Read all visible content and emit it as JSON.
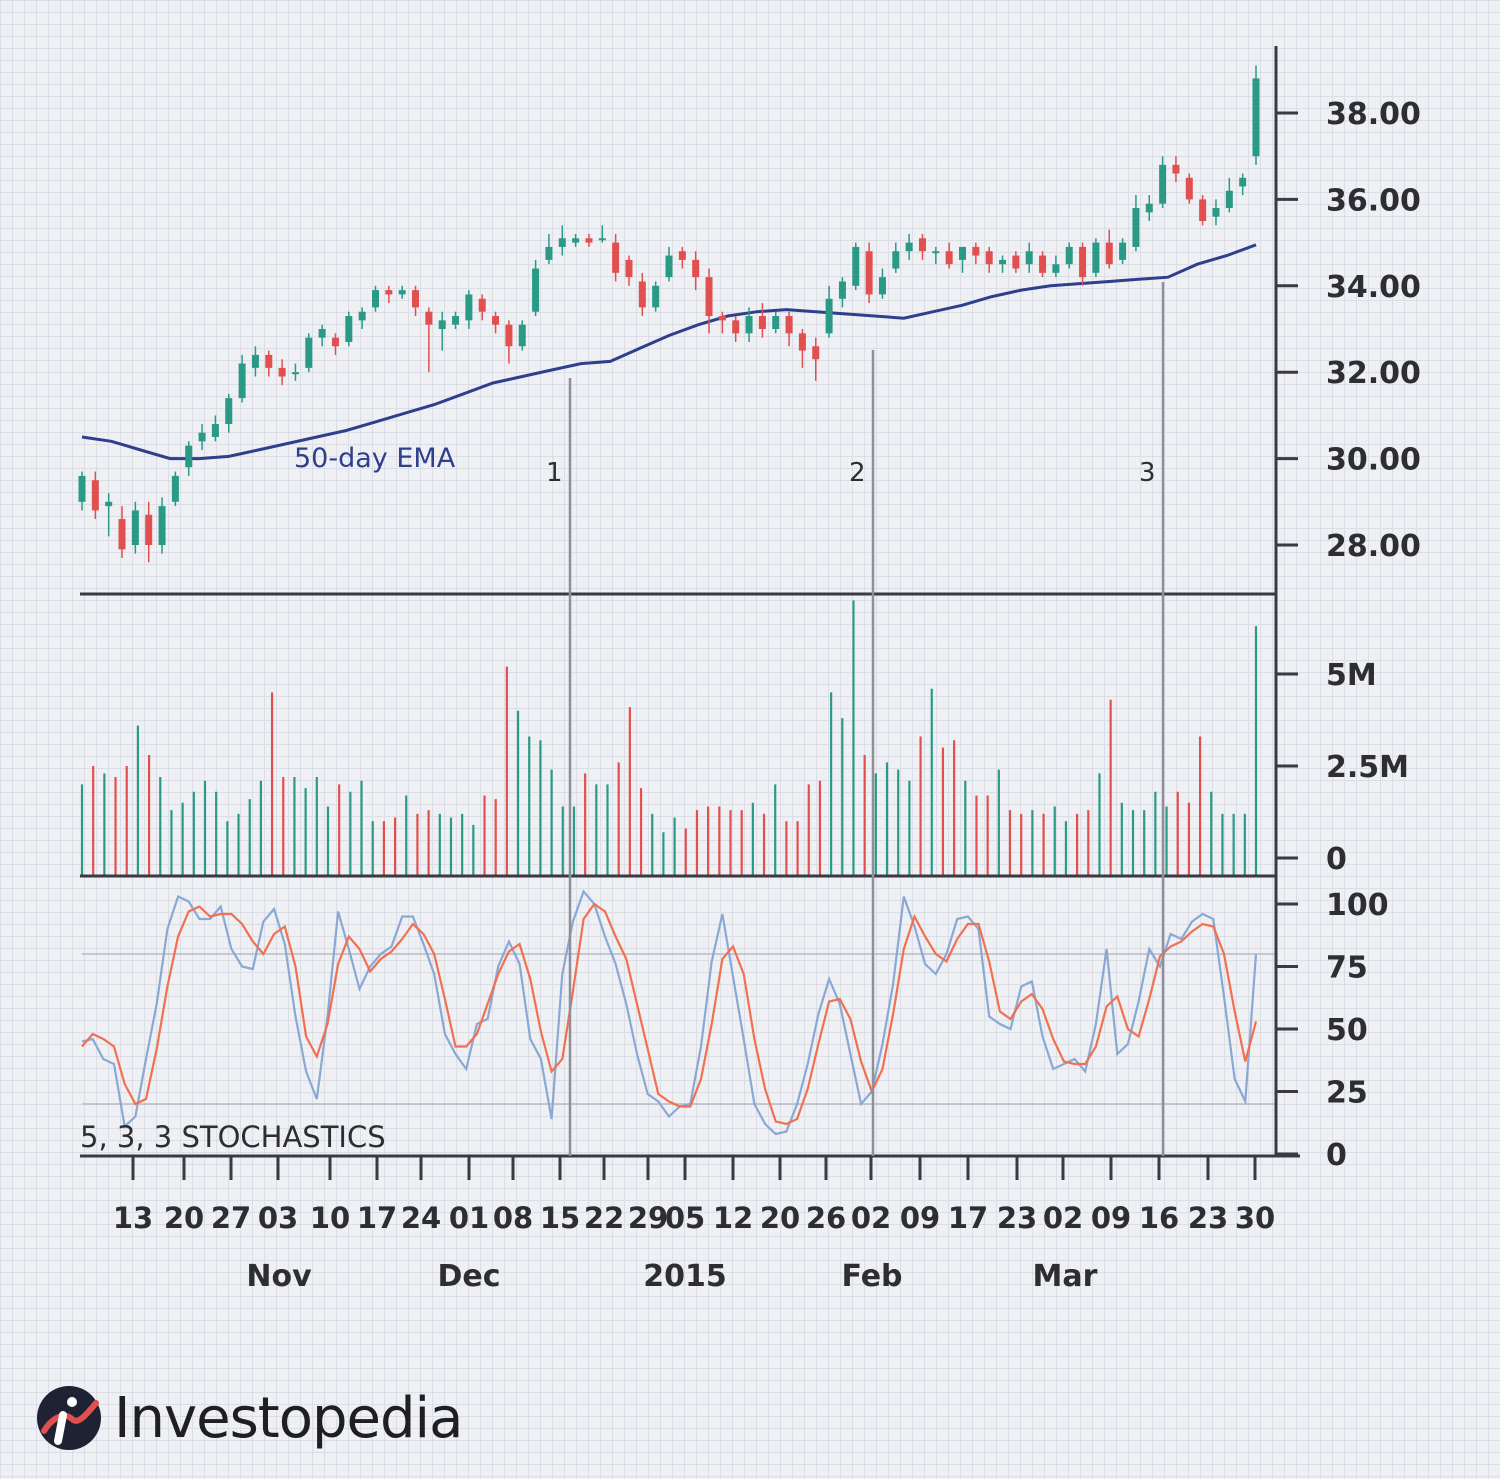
{
  "chart_data": [
    {
      "type": "candlestick",
      "panel": "price",
      "yticks": [
        "38.00",
        "36.00",
        "34.00",
        "32.00",
        "30.00",
        "28.00"
      ],
      "ylim": [
        26.8,
        39.6
      ],
      "overlay": {
        "name": "50-day EMA",
        "label": "50-day EMA",
        "color": "#2e3f8c"
      },
      "up_color": "#2a9a86",
      "down_color": "#e24f4f",
      "markers": [
        {
          "label": "1",
          "date": "Dec 15"
        },
        {
          "label": "2",
          "date": "Feb 02"
        },
        {
          "label": "3",
          "date": "Mar 16"
        }
      ],
      "ema": [
        30.5,
        30.4,
        30.2,
        30.0,
        30.0,
        30.05,
        30.2,
        30.35,
        30.5,
        30.65,
        30.85,
        31.05,
        31.25,
        31.5,
        31.75,
        31.9,
        32.05,
        32.2,
        32.25,
        32.55,
        32.85,
        33.1,
        33.3,
        33.4,
        33.45,
        33.4,
        33.35,
        33.3,
        33.25,
        33.4,
        33.55,
        33.75,
        33.9,
        34.0,
        34.05,
        34.1,
        34.15,
        34.2,
        34.5,
        34.7,
        34.95
      ],
      "candles": [
        [
          29.0,
          29.6,
          28.8,
          29.7
        ],
        [
          29.5,
          28.8,
          28.6,
          29.7
        ],
        [
          28.9,
          29.0,
          28.2,
          29.2
        ],
        [
          28.6,
          27.9,
          27.7,
          28.9
        ],
        [
          28.0,
          28.8,
          27.8,
          29.0
        ],
        [
          28.7,
          28.0,
          27.6,
          29.0
        ],
        [
          28.0,
          28.9,
          27.8,
          29.1
        ],
        [
          29.0,
          29.6,
          28.9,
          29.7
        ],
        [
          29.8,
          30.3,
          29.6,
          30.4
        ],
        [
          30.4,
          30.6,
          30.2,
          30.8
        ],
        [
          30.5,
          30.8,
          30.4,
          31.0
        ],
        [
          30.8,
          31.4,
          30.6,
          31.5
        ],
        [
          31.4,
          32.2,
          31.3,
          32.4
        ],
        [
          32.1,
          32.4,
          31.9,
          32.6
        ],
        [
          32.4,
          32.1,
          31.9,
          32.5
        ],
        [
          32.1,
          31.9,
          31.7,
          32.3
        ],
        [
          32.0,
          32.0,
          31.8,
          32.2
        ],
        [
          32.1,
          32.8,
          32.0,
          32.9
        ],
        [
          32.8,
          33.0,
          32.6,
          33.1
        ],
        [
          32.8,
          32.6,
          32.4,
          32.9
        ],
        [
          32.7,
          33.3,
          32.6,
          33.4
        ],
        [
          33.2,
          33.4,
          33.0,
          33.5
        ],
        [
          33.5,
          33.9,
          33.4,
          34.0
        ],
        [
          33.9,
          33.8,
          33.6,
          34.0
        ],
        [
          33.8,
          33.9,
          33.7,
          34.0
        ],
        [
          33.9,
          33.5,
          33.3,
          34.0
        ],
        [
          33.4,
          33.1,
          32.0,
          33.5
        ],
        [
          33.0,
          33.2,
          32.5,
          33.4
        ],
        [
          33.1,
          33.3,
          33.0,
          33.4
        ],
        [
          33.2,
          33.8,
          33.0,
          33.9
        ],
        [
          33.7,
          33.4,
          33.2,
          33.8
        ],
        [
          33.3,
          33.1,
          32.9,
          33.4
        ],
        [
          33.1,
          32.6,
          32.2,
          33.2
        ],
        [
          32.6,
          33.1,
          32.5,
          33.2
        ],
        [
          33.4,
          34.4,
          33.3,
          34.6
        ],
        [
          34.6,
          34.9,
          34.5,
          35.2
        ],
        [
          34.9,
          35.1,
          34.7,
          35.4
        ],
        [
          35.0,
          35.1,
          34.9,
          35.2
        ],
        [
          35.1,
          35.0,
          34.9,
          35.2
        ],
        [
          35.1,
          35.1,
          35.0,
          35.4
        ],
        [
          35.0,
          34.3,
          34.1,
          35.2
        ],
        [
          34.6,
          34.2,
          34.0,
          34.7
        ],
        [
          34.1,
          33.5,
          33.3,
          34.3
        ],
        [
          33.5,
          34.0,
          33.4,
          34.1
        ],
        [
          34.2,
          34.7,
          34.1,
          34.9
        ],
        [
          34.8,
          34.6,
          34.4,
          34.9
        ],
        [
          34.6,
          34.2,
          33.9,
          34.8
        ],
        [
          34.2,
          33.3,
          32.9,
          34.4
        ],
        [
          33.3,
          33.2,
          32.9,
          33.4
        ],
        [
          33.2,
          32.9,
          32.7,
          33.3
        ],
        [
          32.9,
          33.3,
          32.7,
          33.5
        ],
        [
          33.3,
          33.0,
          32.8,
          33.6
        ],
        [
          33.0,
          33.3,
          32.9,
          33.4
        ],
        [
          33.3,
          32.9,
          32.6,
          33.4
        ],
        [
          32.9,
          32.5,
          32.1,
          33.0
        ],
        [
          32.6,
          32.3,
          31.8,
          32.8
        ],
        [
          32.9,
          33.7,
          32.8,
          34.0
        ],
        [
          33.7,
          34.1,
          33.5,
          34.2
        ],
        [
          34.0,
          34.9,
          33.9,
          35.0
        ],
        [
          34.8,
          33.8,
          33.6,
          35.0
        ],
        [
          33.8,
          34.2,
          33.7,
          34.4
        ],
        [
          34.4,
          34.8,
          34.3,
          35.0
        ],
        [
          34.8,
          35.0,
          34.6,
          35.2
        ],
        [
          35.1,
          34.8,
          34.6,
          35.2
        ],
        [
          34.8,
          34.8,
          34.5,
          34.9
        ],
        [
          34.8,
          34.5,
          34.4,
          35.0
        ],
        [
          34.6,
          34.9,
          34.3,
          34.9
        ],
        [
          34.9,
          34.7,
          34.5,
          35.0
        ],
        [
          34.8,
          34.5,
          34.3,
          34.9
        ],
        [
          34.5,
          34.6,
          34.3,
          34.7
        ],
        [
          34.7,
          34.4,
          34.3,
          34.8
        ],
        [
          34.5,
          34.8,
          34.3,
          35.0
        ],
        [
          34.7,
          34.3,
          34.2,
          34.8
        ],
        [
          34.3,
          34.5,
          34.2,
          34.7
        ],
        [
          34.5,
          34.9,
          34.4,
          35.0
        ],
        [
          34.9,
          34.2,
          34.0,
          35.0
        ],
        [
          34.3,
          35.0,
          34.2,
          35.1
        ],
        [
          35.0,
          34.5,
          34.4,
          35.3
        ],
        [
          34.6,
          35.0,
          34.5,
          35.1
        ],
        [
          34.9,
          35.8,
          34.8,
          36.1
        ],
        [
          35.7,
          35.9,
          35.5,
          36.1
        ],
        [
          35.9,
          36.8,
          35.8,
          37.0
        ],
        [
          36.8,
          36.6,
          36.4,
          37.0
        ],
        [
          36.5,
          36.0,
          35.9,
          36.6
        ],
        [
          36.0,
          35.5,
          35.4,
          36.1
        ],
        [
          35.6,
          35.8,
          35.4,
          36.0
        ],
        [
          35.8,
          36.2,
          35.7,
          36.5
        ],
        [
          36.3,
          36.5,
          36.1,
          36.6
        ],
        [
          37.0,
          38.8,
          36.8,
          39.1
        ]
      ]
    },
    {
      "type": "bar",
      "panel": "volume",
      "yticks": [
        "5M",
        "2.5M",
        "0"
      ],
      "ylim": [
        0,
        6.8
      ],
      "values": [
        2.0,
        2.5,
        2.3,
        2.2,
        2.5,
        3.6,
        2.8,
        2.2,
        1.3,
        1.5,
        1.8,
        2.1,
        1.8,
        1.0,
        1.2,
        1.6,
        2.1,
        4.5,
        2.2,
        2.2,
        1.9,
        2.2,
        1.4,
        2.0,
        1.8,
        2.1,
        1.0,
        1.0,
        1.1,
        1.7,
        1.2,
        1.3,
        1.2,
        1.1,
        1.2,
        0.9,
        1.7,
        1.6,
        5.2,
        4.0,
        3.3,
        3.2,
        2.4,
        1.4,
        1.4,
        2.3,
        2.0,
        2.0,
        2.6,
        4.1,
        1.9,
        1.2,
        0.7,
        1.1,
        0.8,
        1.3,
        1.4,
        1.4,
        1.3,
        1.3,
        1.5,
        1.2,
        2.0,
        1.0,
        1.0,
        2.0,
        2.1,
        4.5,
        3.8,
        7.0,
        2.8,
        2.3,
        2.6,
        2.4,
        2.1,
        3.3,
        4.6,
        3.0,
        3.2,
        2.1,
        1.7,
        1.7,
        2.4,
        1.3,
        1.2,
        1.3,
        1.2,
        1.4,
        1.0,
        1.2,
        1.3,
        2.3,
        4.3,
        1.5,
        1.3,
        1.3,
        1.8,
        1.4,
        1.8,
        1.5,
        3.3,
        1.8,
        1.2,
        1.2,
        1.2,
        6.3
      ],
      "colors": "up/down"
    },
    {
      "type": "line",
      "panel": "stochastics",
      "title": "5, 3, 3 STOCHASTICS",
      "yticks": [
        "100",
        "75",
        "50",
        "25",
        "0"
      ],
      "ylim": [
        0,
        100
      ],
      "reference_lines": [
        80,
        20
      ],
      "series": [
        {
          "color": "#8aa8d4",
          "values": [
            45,
            46,
            38,
            36,
            11,
            15,
            38,
            60,
            90,
            103,
            101,
            94,
            94,
            99,
            82,
            75,
            74,
            93,
            98,
            84,
            55,
            33,
            22,
            55,
            97,
            82,
            66,
            75,
            80,
            83,
            95,
            95,
            84,
            72,
            48,
            40,
            34,
            52,
            54,
            75,
            85,
            76,
            46,
            38,
            14,
            72,
            93,
            105,
            100,
            87,
            76,
            60,
            40,
            24,
            21,
            15,
            19,
            20,
            43,
            77,
            96,
            71,
            46,
            20,
            12,
            8,
            9,
            20,
            36,
            56,
            70,
            60,
            40,
            20,
            25,
            44,
            68,
            103,
            91,
            76,
            72,
            80,
            94,
            95,
            90,
            55,
            52,
            50,
            67,
            69,
            47,
            34,
            36,
            38,
            33,
            52,
            82,
            40,
            44,
            61,
            82,
            75,
            88,
            86,
            93,
            96,
            94,
            63,
            30,
            21,
            80
          ]
        },
        {
          "color": "#f07050",
          "values": [
            43,
            48,
            46,
            43,
            28,
            20,
            22,
            42,
            67,
            87,
            97,
            99,
            95,
            96,
            96,
            92,
            85,
            80,
            88,
            91,
            75,
            47,
            39,
            52,
            76,
            87,
            82,
            73,
            78,
            81,
            86,
            92,
            88,
            80,
            62,
            43,
            43,
            48,
            60,
            72,
            81,
            84,
            70,
            49,
            33,
            38,
            65,
            94,
            100,
            97,
            87,
            78,
            60,
            42,
            24,
            21,
            19,
            19,
            30,
            52,
            78,
            83,
            72,
            46,
            26,
            13,
            12,
            14,
            26,
            44,
            61,
            62,
            54,
            37,
            25,
            34,
            56,
            82,
            95,
            87,
            80,
            77,
            86,
            92,
            92,
            77,
            57,
            54,
            61,
            64,
            58,
            46,
            37,
            36,
            36,
            43,
            59,
            63,
            50,
            47,
            62,
            79,
            83,
            85,
            89,
            92,
            91,
            80,
            57,
            37,
            53
          ]
        }
      ]
    }
  ],
  "x_axis": {
    "date_ticks": [
      "13",
      "20",
      "27",
      "03",
      "10",
      "17",
      "24",
      "01",
      "08",
      "15",
      "22",
      "29",
      "05",
      "12",
      "20",
      "26",
      "02",
      "09",
      "17",
      "23",
      "02",
      "09",
      "16",
      "23",
      "30"
    ],
    "month_labels": [
      "Nov",
      "Dec",
      "2015",
      "Feb",
      "Mar"
    ]
  },
  "brand": {
    "name": "Investopedia"
  }
}
